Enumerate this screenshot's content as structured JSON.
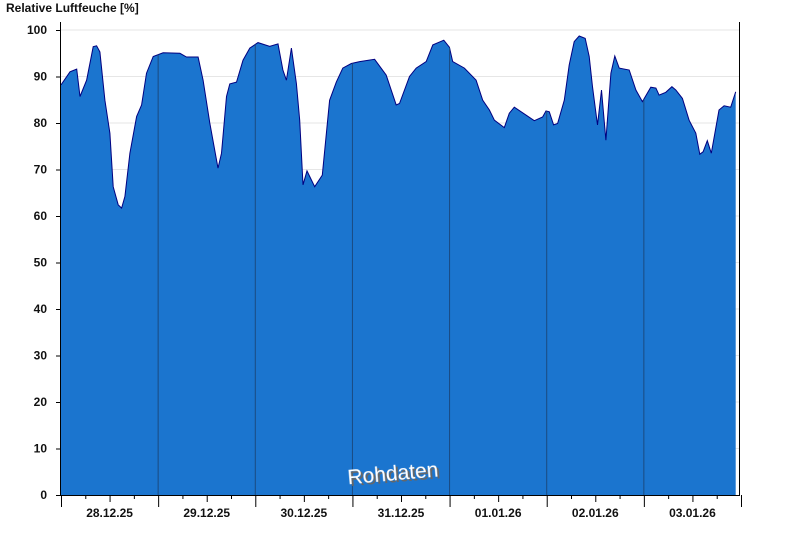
{
  "chart_data": {
    "type": "area",
    "title": "Relative Luftfeuche [%]",
    "ylabel": "",
    "xlabel": "",
    "ylim": [
      0,
      100
    ],
    "yticks": [
      0,
      10,
      20,
      30,
      40,
      50,
      60,
      70,
      80,
      90,
      100
    ],
    "xlim": [
      "2025-12-28T00:00",
      "2026-01-04T00:00"
    ],
    "xtick_labels": [
      {
        "date": "2025-12-28T12:00",
        "label": "28.12.25"
      },
      {
        "date": "2025-12-29T12:00",
        "label": "29.12.25"
      },
      {
        "date": "2025-12-30T12:00",
        "label": "30.12.25"
      },
      {
        "date": "2025-12-31T12:00",
        "label": "31.12.25"
      },
      {
        "date": "2026-01-01T12:00",
        "label": "01.01.26"
      },
      {
        "date": "2026-01-02T12:00",
        "label": "02.01.26"
      },
      {
        "date": "2026-01-03T12:00",
        "label": "03.01.26"
      }
    ],
    "grid": true,
    "fill_color": "#1b75cf",
    "line_color": "#000080",
    "day_separator_color": "#1a4a80",
    "watermark": "Rohdaten",
    "points": [
      [
        "2025-12-28T00:00",
        88.2
      ],
      [
        "2025-12-28T02:13",
        91.0
      ],
      [
        "2025-12-28T03:52",
        91.6
      ],
      [
        "2025-12-28T04:41",
        85.7
      ],
      [
        "2025-12-28T06:20",
        89.2
      ],
      [
        "2025-12-28T07:58",
        96.4
      ],
      [
        "2025-12-28T08:48",
        96.6
      ],
      [
        "2025-12-28T09:37",
        95.3
      ],
      [
        "2025-12-28T10:51",
        84.9
      ],
      [
        "2025-12-28T12:05",
        77.8
      ],
      [
        "2025-12-28T12:54",
        66.3
      ],
      [
        "2025-12-28T14:08",
        62.4
      ],
      [
        "2025-12-28T14:58",
        61.7
      ],
      [
        "2025-12-28T15:47",
        64.2
      ],
      [
        "2025-12-28T17:01",
        73.5
      ],
      [
        "2025-12-28T18:41",
        81.4
      ],
      [
        "2025-12-28T19:55",
        83.9
      ],
      [
        "2025-12-28T21:08",
        90.7
      ],
      [
        "2025-12-28T22:46",
        94.3
      ],
      [
        "2025-12-29T01:14",
        95.1
      ],
      [
        "2025-12-29T05:22",
        95.0
      ],
      [
        "2025-12-29T07:01",
        94.2
      ],
      [
        "2025-12-29T09:52",
        94.2
      ],
      [
        "2025-12-29T11:06",
        89.2
      ],
      [
        "2025-12-29T12:46",
        80.0
      ],
      [
        "2025-12-29T14:48",
        70.3
      ],
      [
        "2025-12-29T15:39",
        73.5
      ],
      [
        "2025-12-29T16:53",
        85.7
      ],
      [
        "2025-12-29T17:42",
        88.4
      ],
      [
        "2025-12-29T19:21",
        88.8
      ],
      [
        "2025-12-29T20:58",
        93.5
      ],
      [
        "2025-12-29T22:38",
        96.1
      ],
      [
        "2025-12-30T00:40",
        97.3
      ],
      [
        "2025-12-30T03:34",
        96.5
      ],
      [
        "2025-12-30T05:37",
        97.0
      ],
      [
        "2025-12-30T06:50",
        91.4
      ],
      [
        "2025-12-30T07:41",
        89.2
      ],
      [
        "2025-12-30T08:55",
        96.1
      ],
      [
        "2025-12-30T10:09",
        88.5
      ],
      [
        "2025-12-30T10:58",
        80.6
      ],
      [
        "2025-12-30T11:47",
        66.7
      ],
      [
        "2025-12-30T12:46",
        69.7
      ],
      [
        "2025-12-30T14:40",
        66.3
      ],
      [
        "2025-12-30T16:34",
        68.8
      ],
      [
        "2025-12-30T18:22",
        84.9
      ],
      [
        "2025-12-30T20:01",
        88.8
      ],
      [
        "2025-12-30T21:38",
        91.8
      ],
      [
        "2025-12-30T23:43",
        92.8
      ],
      [
        "2025-12-31T01:46",
        93.2
      ],
      [
        "2025-12-31T05:28",
        93.7
      ],
      [
        "2025-12-31T08:21",
        90.3
      ],
      [
        "2025-12-31T10:49",
        83.9
      ],
      [
        "2025-12-31T11:38",
        84.2
      ],
      [
        "2025-12-31T14:06",
        90.0
      ],
      [
        "2025-12-31T15:45",
        91.8
      ],
      [
        "2025-12-31T18:13",
        93.2
      ],
      [
        "2025-12-31T19:51",
        96.8
      ],
      [
        "2025-12-31T22:34",
        97.8
      ],
      [
        "2025-12-31T23:58",
        96.3
      ],
      [
        "2026-01-01T00:47",
        93.2
      ],
      [
        "2026-01-01T03:40",
        91.8
      ],
      [
        "2026-01-01T06:33",
        89.2
      ],
      [
        "2026-01-01T08:11",
        84.9
      ],
      [
        "2026-01-01T09:50",
        82.8
      ],
      [
        "2026-01-01T11:04",
        80.6
      ],
      [
        "2026-01-01T13:32",
        79.0
      ],
      [
        "2026-01-01T14:46",
        82.1
      ],
      [
        "2026-01-01T16:00",
        83.4
      ],
      [
        "2026-01-01T18:53",
        81.7
      ],
      [
        "2026-01-01T20:56",
        80.5
      ],
      [
        "2026-01-01T22:59",
        81.3
      ],
      [
        "2026-01-01T23:49",
        82.6
      ],
      [
        "2026-01-02T00:38",
        82.4
      ],
      [
        "2026-01-02T01:42",
        79.6
      ],
      [
        "2026-01-02T02:41",
        79.9
      ],
      [
        "2026-01-02T04:20",
        84.9
      ],
      [
        "2026-01-02T05:34",
        92.5
      ],
      [
        "2026-01-02T06:48",
        97.5
      ],
      [
        "2026-01-02T08:02",
        98.7
      ],
      [
        "2026-01-02T09:31",
        98.2
      ],
      [
        "2026-01-02T10:30",
        94.3
      ],
      [
        "2026-01-02T11:19",
        87.8
      ],
      [
        "2026-01-02T12:33",
        79.6
      ],
      [
        "2026-01-02T13:32",
        87.1
      ],
      [
        "2026-01-02T14:37",
        76.3
      ],
      [
        "2026-01-02T15:52",
        90.7
      ],
      [
        "2026-01-02T16:50",
        94.4
      ],
      [
        "2026-01-02T17:55",
        91.8
      ],
      [
        "2026-01-02T20:22",
        91.4
      ],
      [
        "2026-01-02T22:02",
        87.1
      ],
      [
        "2026-01-02T23:39",
        84.6
      ],
      [
        "2026-01-03T01:43",
        87.7
      ],
      [
        "2026-01-03T02:58",
        87.5
      ],
      [
        "2026-01-03T03:46",
        86.0
      ],
      [
        "2026-01-03T05:26",
        86.6
      ],
      [
        "2026-01-03T06:55",
        87.8
      ],
      [
        "2026-01-03T07:53",
        87.1
      ],
      [
        "2026-01-03T09:31",
        85.3
      ],
      [
        "2026-01-03T11:10",
        80.6
      ],
      [
        "2026-01-03T12:50",
        77.8
      ],
      [
        "2026-01-03T13:49",
        73.3
      ],
      [
        "2026-01-03T14:38",
        73.8
      ],
      [
        "2026-01-03T15:41",
        76.2
      ],
      [
        "2026-01-03T16:40",
        73.5
      ],
      [
        "2026-01-03T18:34",
        82.8
      ],
      [
        "2026-01-03T19:49",
        83.7
      ],
      [
        "2026-01-03T21:28",
        83.4
      ],
      [
        "2026-01-03T22:42",
        86.7
      ]
    ]
  }
}
